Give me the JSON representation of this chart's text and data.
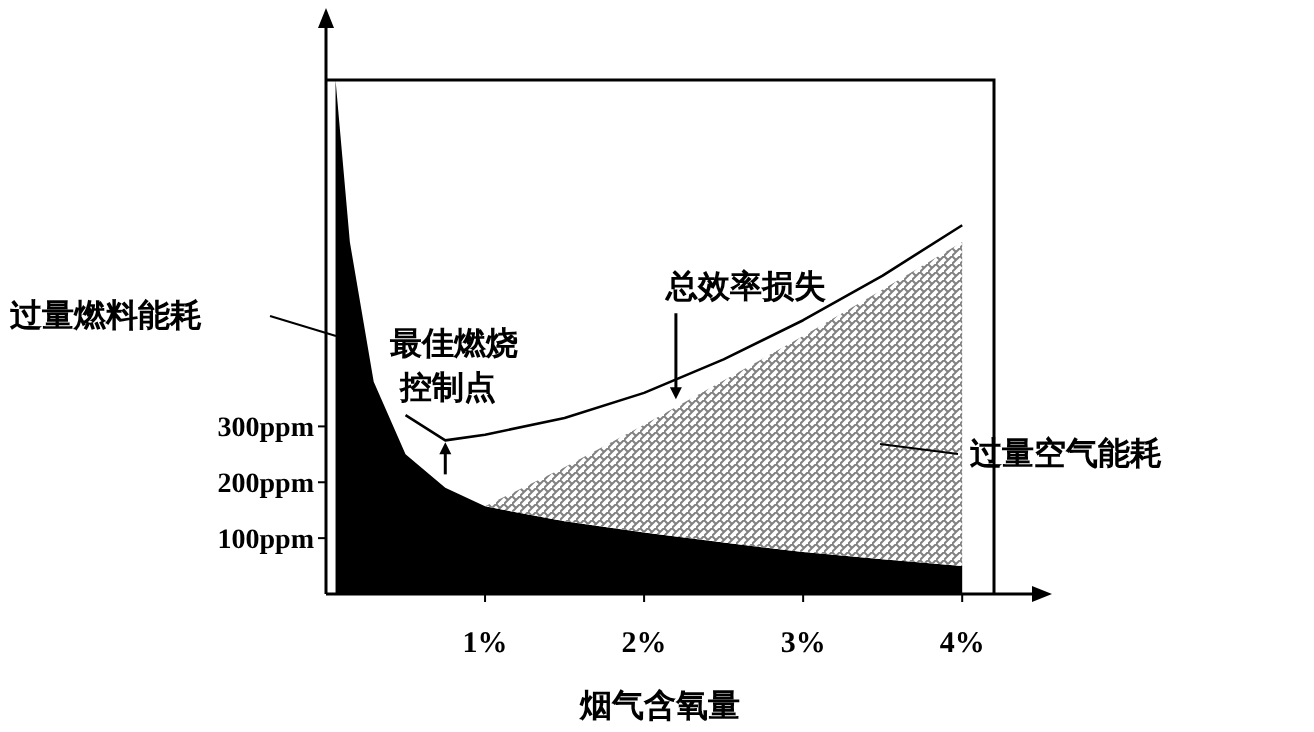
{
  "chart_data": {
    "type": "area",
    "stacked": true,
    "xlabel": "烟气含氧量",
    "x": [
      0.06,
      0.15,
      0.3,
      0.5,
      0.75,
      1,
      1.5,
      2,
      2.5,
      3,
      3.5,
      4
    ],
    "xlim": [
      0,
      4.2
    ],
    "ylim": [
      0,
      920
    ],
    "xticks": [
      {
        "value": 1,
        "label": "1%"
      },
      {
        "value": 2,
        "label": "2%"
      },
      {
        "value": 3,
        "label": "3%"
      },
      {
        "value": 4,
        "label": "4%"
      }
    ],
    "yticks": [
      {
        "value": 100,
        "label": "100ppm"
      },
      {
        "value": 200,
        "label": "200ppm"
      },
      {
        "value": 300,
        "label": "300ppm"
      }
    ],
    "series": [
      {
        "color": "#000000",
        "values": [
          920,
          630,
          380,
          250,
          190,
          157,
          130,
          110,
          92,
          75,
          62,
          50
        ]
      },
      {
        "color": "#808080",
        "values": [
          0,
          0,
          0,
          0,
          0,
          0,
          97,
          193,
          290,
          387,
          483,
          580
        ]
      },
      {
        "type": "line",
        "color": "#000000",
        "x": [
          0.5,
          0.75,
          1,
          1.5,
          2,
          2.5,
          3,
          3.5,
          4
        ],
        "values": [
          320,
          275,
          285,
          315,
          360,
          420,
          490,
          570,
          660
        ]
      }
    ],
    "annotations": [
      "过量燃料能耗",
      {
        "text": "最佳燃烧控制点",
        "x": 0.75,
        "y": 275
      },
      {
        "text": "总效率损失",
        "x": 2.2,
        "y": 345
      },
      "过量空气能耗"
    ]
  }
}
